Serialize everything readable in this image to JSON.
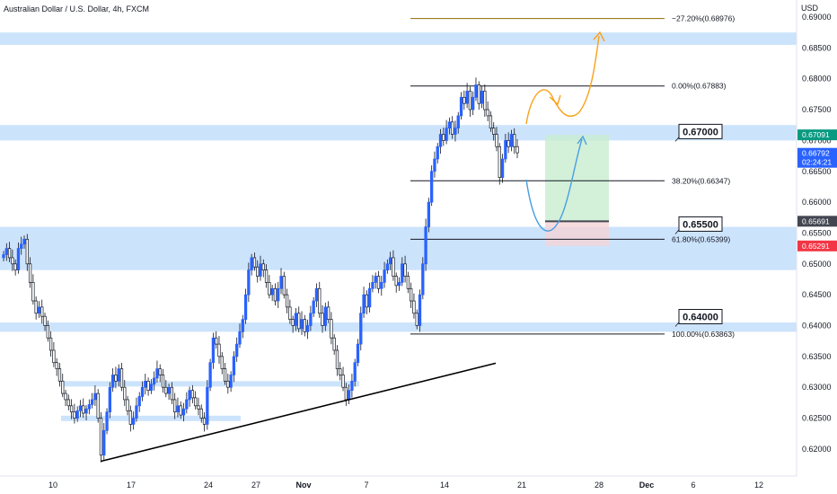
{
  "header": {
    "title": "Australian Dollar / U.S. Dollar, 4h, FXCM",
    "currency": "USD"
  },
  "chart_data": {
    "type": "candlestick",
    "symbol": "Australian Dollar / U.S. Dollar, 4h, FXCM",
    "y_axis": {
      "unit": "USD",
      "range": [
        0.6185,
        0.6905
      ],
      "ticks": [
        "0.69000",
        "0.68500",
        "0.68000",
        "0.67500",
        "0.67000",
        "0.66500",
        "0.66000",
        "0.65500",
        "0.65000",
        "0.64500",
        "0.64000",
        "0.63500",
        "0.63000",
        "0.62500",
        "0.62000"
      ]
    },
    "x_axis": {
      "ticks": [
        "10",
        "17",
        "24",
        "27",
        "Nov",
        "7",
        "14",
        "21",
        "28",
        "Dec",
        "6",
        "12"
      ]
    },
    "price_tags": [
      {
        "text": "0.67091",
        "value": 0.67091,
        "color": "#089981"
      },
      {
        "text": "0.66792",
        "value": 0.66792,
        "color": "#2962ff",
        "extra": "02:24:21"
      },
      {
        "text": "0.65691",
        "value": 0.65691,
        "color": "#434651"
      },
      {
        "text": "0.65291",
        "value": 0.65291,
        "color": "#f23645"
      }
    ],
    "fib_levels": [
      {
        "label": "−27.20%(0.68976)",
        "value": 0.68976,
        "color": "#8d6e00"
      },
      {
        "label": "0.00%(0.67883)",
        "value": 0.67883,
        "color": "#131722"
      },
      {
        "label": "38.20%(0.66347)",
        "value": 0.66347,
        "color": "#131722"
      },
      {
        "label": "61.80%(0.65399)",
        "value": 0.65399,
        "color": "#131722"
      },
      {
        "label": "100.00%(0.63863)",
        "value": 0.63863,
        "color": "#131722"
      }
    ],
    "zones": [
      {
        "low": 0.6855,
        "high": 0.6875
      },
      {
        "low": 0.67,
        "high": 0.6725
      },
      {
        "low": 0.649,
        "high": 0.656
      },
      {
        "low": 0.639,
        "high": 0.6405
      },
      {
        "low": 0.6302,
        "high": 0.631
      },
      {
        "low": 0.6248,
        "high": 0.6254
      }
    ],
    "callouts": [
      {
        "text": "0.67000",
        "value": 0.67
      },
      {
        "text": "0.65500",
        "value": 0.655
      },
      {
        "text": "0.64000",
        "value": 0.64
      }
    ],
    "position": {
      "entry": 0.65691,
      "target": 0.67091,
      "stop": 0.65291
    },
    "trendline": {
      "from": 0.618,
      "to": 0.6339
    },
    "series": [
      {
        "name": "",
        "values": [
          0.6515,
          0.6525,
          0.651,
          0.65,
          0.649,
          0.6525,
          0.6532,
          0.654,
          0.65,
          0.647,
          0.644,
          0.642,
          0.643,
          0.6415,
          0.64,
          0.638,
          0.636,
          0.634,
          0.633,
          0.631,
          0.629,
          0.628,
          0.627,
          0.626,
          0.625,
          0.6262,
          0.627,
          0.6258,
          0.6265,
          0.6272,
          0.628,
          0.629,
          0.625,
          0.619,
          0.623,
          0.626,
          0.63,
          0.632,
          0.631,
          0.633,
          0.63,
          0.628,
          0.6262,
          0.624,
          0.625,
          0.627,
          0.6285,
          0.63,
          0.631,
          0.6295,
          0.6305,
          0.6315,
          0.633,
          0.632,
          0.63,
          0.629,
          0.63,
          0.628,
          0.626,
          0.627,
          0.6255,
          0.6265,
          0.628,
          0.6295,
          0.6283,
          0.627,
          0.6265,
          0.625,
          0.624,
          0.63,
          0.634,
          0.638,
          0.637,
          0.635,
          0.633,
          0.631,
          0.63,
          0.632,
          0.635,
          0.637,
          0.639,
          0.641,
          0.645,
          0.649,
          0.651,
          0.6495,
          0.648,
          0.65,
          0.649,
          0.647,
          0.645,
          0.646,
          0.644,
          0.646,
          0.648,
          0.645,
          0.643,
          0.641,
          0.64,
          0.642,
          0.6395,
          0.641,
          0.639,
          0.64,
          0.642,
          0.644,
          0.646,
          0.642,
          0.64,
          0.643,
          0.641,
          0.638,
          0.636,
          0.633,
          0.632,
          0.63,
          0.628,
          0.6295,
          0.631,
          0.634,
          0.637,
          0.642,
          0.645,
          0.643,
          0.646,
          0.647,
          0.648,
          0.646,
          0.647,
          0.649,
          0.65,
          0.651,
          0.648,
          0.6465,
          0.647,
          0.65,
          0.648,
          0.646,
          0.644,
          0.642,
          0.64,
          0.645,
          0.65,
          0.656,
          0.66,
          0.665,
          0.667,
          0.669,
          0.671,
          0.67,
          0.672,
          0.673,
          0.671,
          0.672,
          0.674,
          0.677,
          0.676,
          0.678,
          0.675,
          0.677,
          0.679,
          0.676,
          0.678,
          0.675,
          0.674,
          0.672,
          0.671,
          0.669,
          0.664,
          0.667,
          0.67,
          0.669,
          0.671,
          0.669,
          0.668
        ]
      }
    ],
    "annotations": [
      "0.67000",
      "0.65500",
      "0.64000"
    ]
  }
}
